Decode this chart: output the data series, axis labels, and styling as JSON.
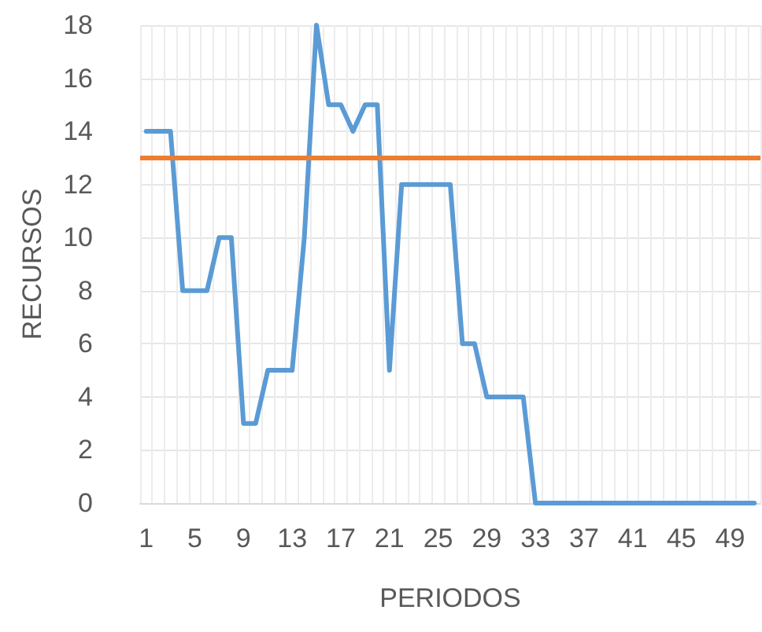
{
  "chart_data": {
    "type": "line",
    "xlabel": "PERIODOS",
    "ylabel": "RECURSOS",
    "categories": [
      "1",
      null,
      null,
      null,
      "5",
      null,
      null,
      null,
      "9",
      null,
      null,
      null,
      "13",
      null,
      null,
      null,
      "17",
      null,
      null,
      null,
      "21",
      null,
      null,
      null,
      "25",
      null,
      null,
      null,
      "29",
      null,
      null,
      null,
      "33",
      null,
      null,
      null,
      "37",
      null,
      null,
      null,
      "41",
      null,
      null,
      null,
      "45",
      null,
      null,
      null,
      "49",
      null,
      null
    ],
    "series": [
      {
        "color": "#5b9bd5",
        "values": [
          14,
          14,
          14,
          8,
          8,
          8,
          10,
          10,
          3,
          3,
          5,
          5,
          5,
          10,
          18,
          15,
          15,
          14,
          15,
          15,
          5,
          12,
          12,
          12,
          12,
          12,
          6,
          6,
          4,
          4,
          4,
          4,
          0,
          0,
          0,
          0,
          0,
          0,
          0,
          0,
          0,
          0,
          0,
          0,
          0,
          0,
          0,
          0,
          0,
          0,
          0
        ]
      }
    ],
    "ref_lines": [
      {
        "axis": "y",
        "value": 13,
        "color": "#ed7d31"
      }
    ],
    "ylim": [
      0,
      18
    ],
    "yticks": [
      0,
      2,
      4,
      6,
      8,
      10,
      12,
      14,
      16,
      18
    ],
    "grid": true,
    "marker": "none",
    "line_style": "solid"
  }
}
